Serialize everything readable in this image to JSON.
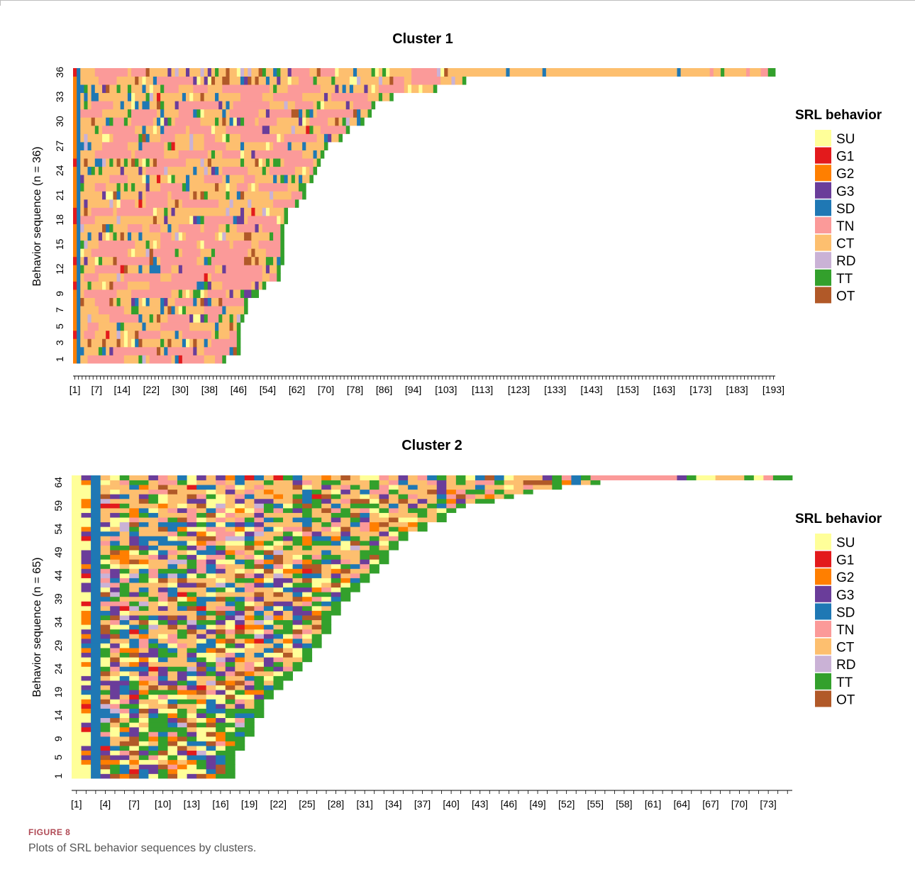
{
  "figure": {
    "label": "FIGURE 8",
    "caption": "Plots of SRL behavior sequences by clusters."
  },
  "legend_title": "SRL behavior",
  "states": [
    {
      "code": "SU",
      "color": "#FFFF99"
    },
    {
      "code": "G1",
      "color": "#E31A1C"
    },
    {
      "code": "G2",
      "color": "#FF7F00"
    },
    {
      "code": "G3",
      "color": "#6A3D9A"
    },
    {
      "code": "SD",
      "color": "#1F78B4"
    },
    {
      "code": "TN",
      "color": "#FB9A99"
    },
    {
      "code": "CT",
      "color": "#FDBF6F"
    },
    {
      "code": "RD",
      "color": "#CAB2D6"
    },
    {
      "code": "TT",
      "color": "#33A02C"
    },
    {
      "code": "OT",
      "color": "#B15928"
    }
  ],
  "chart_data": [
    {
      "type": "heatmap",
      "title": "Cluster 1",
      "ylabel": "Behavior sequence (n = 36)",
      "n_sequences": 36,
      "max_length": 193,
      "y_tick_labels": [
        "1",
        "3",
        "5",
        "7",
        "9",
        "12",
        "15",
        "18",
        "21",
        "24",
        "27",
        "30",
        "33",
        "36"
      ],
      "y_tick_values": [
        1,
        3,
        5,
        7,
        9,
        12,
        15,
        18,
        21,
        24,
        27,
        30,
        33,
        36
      ],
      "x_tick_labels": [
        "[1]",
        "[7]",
        "[14]",
        "[22]",
        "[30]",
        "[38]",
        "[46]",
        "[54]",
        "[62]",
        "[70]",
        "[78]",
        "[86]",
        "[94]",
        "[103]",
        "[113]",
        "[123]",
        "[133]",
        "[143]",
        "[153]",
        "[163]",
        "[173]",
        "[183]",
        "[193]"
      ],
      "x_tick_values": [
        1,
        7,
        14,
        22,
        30,
        38,
        46,
        54,
        62,
        70,
        78,
        86,
        94,
        103,
        113,
        123,
        133,
        143,
        153,
        163,
        173,
        183,
        193
      ],
      "sequence_lengths": [
        42,
        46,
        46,
        46,
        46,
        47,
        48,
        48,
        51,
        53,
        57,
        57,
        58,
        58,
        58,
        58,
        58,
        59,
        59,
        62,
        64,
        64,
        66,
        67,
        68,
        69,
        70,
        74,
        76,
        80,
        82,
        83,
        88,
        100,
        108,
        193
      ],
      "dominant_state": "CT",
      "legend_position": "right"
    },
    {
      "type": "heatmap",
      "title": "Cluster 2",
      "ylabel": "Behavior sequence (n = 65)",
      "n_sequences": 65,
      "max_length": 75,
      "y_tick_labels": [
        "1",
        "5",
        "9",
        "14",
        "19",
        "24",
        "29",
        "34",
        "39",
        "44",
        "49",
        "54",
        "59",
        "64"
      ],
      "y_tick_values": [
        1,
        5,
        9,
        14,
        19,
        24,
        29,
        34,
        39,
        44,
        49,
        54,
        59,
        64
      ],
      "x_tick_labels": [
        "[1]",
        "[4]",
        "[7]",
        "[10]",
        "[13]",
        "[16]",
        "[19]",
        "[22]",
        "[25]",
        "[28]",
        "[31]",
        "[34]",
        "[37]",
        "[40]",
        "[43]",
        "[46]",
        "[49]",
        "[52]",
        "[55]",
        "[58]",
        "[61]",
        "[64]",
        "[67]",
        "[70]",
        "[73]"
      ],
      "x_tick_values": [
        1,
        4,
        7,
        10,
        13,
        16,
        19,
        22,
        25,
        28,
        31,
        34,
        37,
        40,
        43,
        46,
        49,
        52,
        55,
        58,
        61,
        64,
        67,
        70,
        73
      ],
      "sequence_lengths": [
        17,
        17,
        17,
        17,
        17,
        17,
        18,
        18,
        18,
        19,
        19,
        19,
        19,
        20,
        20,
        20,
        20,
        21,
        21,
        22,
        22,
        23,
        23,
        24,
        24,
        25,
        25,
        25,
        26,
        26,
        26,
        27,
        27,
        27,
        27,
        28,
        28,
        28,
        29,
        29,
        30,
        30,
        31,
        31,
        32,
        32,
        33,
        33,
        33,
        34,
        34,
        35,
        35,
        37,
        37,
        39,
        39,
        40,
        41,
        44,
        46,
        48,
        51,
        55,
        75
      ],
      "dominant_state": "TT",
      "legend_position": "right"
    }
  ]
}
